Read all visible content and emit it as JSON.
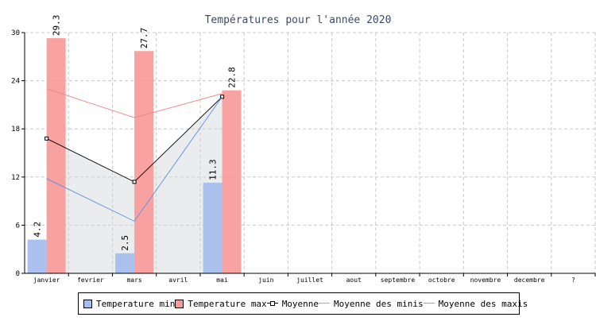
{
  "chart_data": {
    "type": "bar",
    "title": "Températures pour l'année 2020",
    "categories": [
      "janvier",
      "fevrier",
      "mars",
      "avril",
      "mai",
      "juin",
      "juillet",
      "aout",
      "septembre",
      "octobre",
      "novembre",
      "decembre",
      "?"
    ],
    "ylim": [
      0,
      30
    ],
    "yticks": [
      "0",
      "6",
      "12",
      "18",
      "24",
      "30"
    ],
    "grid": true,
    "legend_position": "bottom",
    "series": [
      {
        "name": "Temperature min",
        "kind": "bar",
        "color": "#a6bfee",
        "values": [
          4.2,
          null,
          2.5,
          null,
          11.3,
          null,
          null,
          null,
          null,
          null,
          null,
          null,
          null
        ]
      },
      {
        "name": "Temperature max",
        "kind": "bar",
        "color": "#f79a9a",
        "values": [
          29.3,
          null,
          27.7,
          null,
          22.8,
          null,
          null,
          null,
          null,
          null,
          null,
          null,
          null
        ]
      },
      {
        "name": "Moyenne",
        "kind": "line-markers",
        "color": "#000000",
        "values": [
          16.8,
          null,
          11.4,
          null,
          22.0,
          null,
          null,
          null,
          null,
          null,
          null,
          null,
          null
        ]
      },
      {
        "name": "Moyenne des minis",
        "kind": "line",
        "color": "#5b8fe0",
        "values": [
          11.8,
          null,
          6.5,
          null,
          22.0,
          null,
          null,
          null,
          null,
          null,
          null,
          null,
          null
        ]
      },
      {
        "name": "Moyenne des maxis",
        "kind": "line",
        "color": "#f08080",
        "values": [
          23.0,
          null,
          19.4,
          null,
          22.4,
          null,
          null,
          null,
          null,
          null,
          null,
          null,
          null
        ]
      }
    ],
    "data_labels": {
      "Temperature min": [
        "4.2",
        null,
        "2.5",
        null,
        "11.3",
        null,
        null,
        null,
        null,
        null,
        null,
        null,
        null
      ],
      "Temperature max": [
        "29.3",
        null,
        "27.7",
        null,
        "22.8",
        null,
        null,
        null,
        null,
        null,
        null,
        null,
        null
      ]
    }
  }
}
